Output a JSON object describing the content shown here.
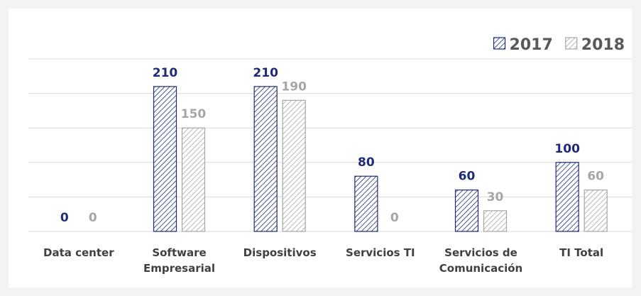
{
  "chart_data": {
    "type": "bar",
    "categories": [
      "Data center",
      "Software Empresarial",
      "Dispositivos",
      "Servicios TI",
      "Servicios de Comunicación",
      "TI Total"
    ],
    "series": [
      {
        "name": "2017",
        "color": "#1f2a78",
        "values": [
          0,
          210,
          210,
          80,
          60,
          100
        ]
      },
      {
        "name": "2018",
        "color": "#a6a6a6",
        "values": [
          0,
          150,
          190,
          0,
          30,
          60
        ]
      }
    ],
    "ylim": [
      0,
      250
    ],
    "yticks": [
      0,
      50,
      100,
      150,
      200,
      250
    ],
    "grid": true,
    "legend": "top-right"
  }
}
